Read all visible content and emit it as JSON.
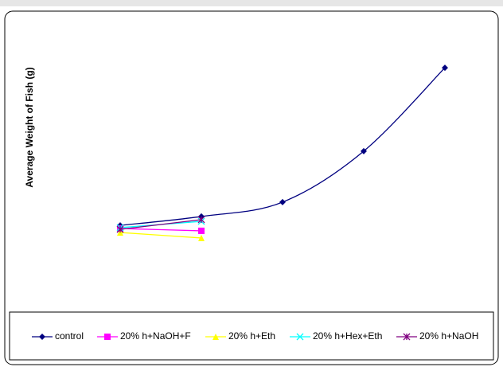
{
  "chart_data": {
    "type": "line",
    "y_label": "Average Weight of Fish (g)",
    "categories": [
      null,
      null,
      null,
      null,
      null
    ],
    "ylim": [
      0,
      100
    ],
    "legend": "bottom",
    "series": [
      {
        "name": "control",
        "color": "#000080",
        "marker": "diamond",
        "values": [
          29.7,
          32.8,
          37.8,
          55.6,
          84.7
        ]
      },
      {
        "name": "20% h+NaOH+F",
        "color": "#ff00ff",
        "marker": "square",
        "values": [
          28.6,
          27.8,
          null,
          null,
          null
        ]
      },
      {
        "name": "20% h+Eth",
        "color": "#ffff00",
        "marker": "triangle",
        "values": [
          27.2,
          25.3,
          null,
          null,
          null
        ]
      },
      {
        "name": "20% h+Hex+Eth",
        "color": "#00ffff",
        "marker": "x",
        "values": [
          28.9,
          31.1,
          null,
          null,
          null
        ]
      },
      {
        "name": "20% h+NaOH",
        "color": "#800080",
        "marker": "star",
        "values": [
          28.3,
          31.7,
          null,
          null,
          null
        ]
      }
    ]
  }
}
